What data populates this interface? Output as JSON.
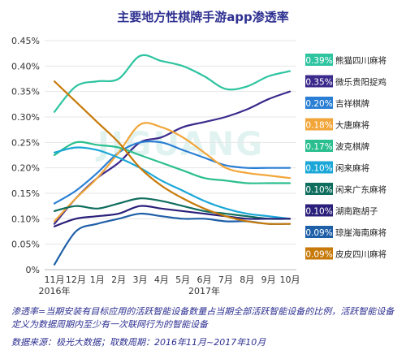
{
  "title": "主要地方性棋牌手游app渗透率",
  "watermark": "JIGUANG",
  "footnote": "渗透率=当期安装有目标应用的活跃智能设备数量占当期全部活跃智能设备的比例，活跃智能设备定义为数据周期内至少有一次联网行为的智能设备",
  "source": "数据来源：极光大数据；取数周期：2016年11月~2017年10月",
  "chart_data": {
    "type": "line",
    "title": "主要地方性棋牌手游app渗透率",
    "x_ticks": [
      "11月",
      "12月",
      "1月",
      "2月",
      "3月",
      "4月",
      "5月",
      "6月",
      "7月",
      "8月",
      "9月",
      "10月"
    ],
    "year_labels": [
      {
        "label": "2016年",
        "at": "11月"
      },
      {
        "label": "2017年",
        "at": "6月"
      }
    ],
    "y_ticks": [
      "0%",
      "0.05%",
      "0.10%",
      "0.15%",
      "0.20%",
      "0.25%",
      "0.30%",
      "0.35%",
      "0.40%",
      "0.45%"
    ],
    "ylim": [
      0,
      0.45
    ],
    "grid": "horizontal",
    "legend_placement": "right",
    "series": [
      {
        "name": "熊猫四川麻将",
        "end_label": "0.39%",
        "color": "#2ec4a0",
        "values": [
          0.31,
          0.36,
          0.37,
          0.375,
          0.42,
          0.41,
          0.4,
          0.38,
          0.355,
          0.36,
          0.38,
          0.39
        ]
      },
      {
        "name": "微乐贵阳捉鸡",
        "end_label": "0.35%",
        "color": "#3b2a8c",
        "values": [
          0.09,
          0.14,
          0.18,
          0.21,
          0.25,
          0.26,
          0.28,
          0.29,
          0.3,
          0.315,
          0.335,
          0.35
        ]
      },
      {
        "name": "吉祥棋牌",
        "end_label": "0.20%",
        "color": "#2a7fd4",
        "values": [
          0.13,
          0.155,
          0.19,
          0.23,
          0.25,
          0.25,
          0.235,
          0.22,
          0.205,
          0.2,
          0.2,
          0.2
        ]
      },
      {
        "name": "大唐麻将",
        "end_label": "0.18%",
        "color": "#f2a63a",
        "values": [
          0.095,
          0.14,
          0.18,
          0.23,
          0.285,
          0.28,
          0.26,
          0.23,
          0.2,
          0.19,
          0.185,
          0.18
        ]
      },
      {
        "name": "波克棋牌",
        "end_label": "0.17%",
        "color": "#2bbf8f",
        "values": [
          0.225,
          0.25,
          0.245,
          0.24,
          0.225,
          0.21,
          0.195,
          0.18,
          0.175,
          0.17,
          0.17,
          0.17
        ]
      },
      {
        "name": "闲来麻将",
        "end_label": "0.10%",
        "color": "#1aa7d8",
        "values": [
          0.23,
          0.24,
          0.235,
          0.22,
          0.2,
          0.175,
          0.155,
          0.135,
          0.12,
          0.11,
          0.105,
          0.1
        ]
      },
      {
        "name": "闲来广东麻将",
        "end_label": "0.10%",
        "color": "#0f6e5e",
        "values": [
          0.115,
          0.125,
          0.12,
          0.13,
          0.14,
          0.135,
          0.125,
          0.115,
          0.11,
          0.105,
          0.1,
          0.1
        ]
      },
      {
        "name": "湖南跑胡子",
        "end_label": "0.10%",
        "color": "#2a1f7a",
        "values": [
          0.085,
          0.1,
          0.105,
          0.11,
          0.125,
          0.12,
          0.115,
          0.11,
          0.105,
          0.1,
          0.1,
          0.1
        ]
      },
      {
        "name": "琼崖海南麻将",
        "end_label": "0.09%",
        "color": "#1f5fa8",
        "values": [
          0.01,
          0.075,
          0.09,
          0.1,
          0.11,
          0.105,
          0.1,
          0.1,
          0.095,
          0.095,
          0.09,
          0.09
        ]
      },
      {
        "name": "皮皮四川麻将",
        "end_label": "0.09%",
        "color": "#c77a0a",
        "values": [
          0.37,
          0.33,
          0.29,
          0.25,
          0.2,
          0.165,
          0.14,
          0.12,
          0.105,
          0.095,
          0.09,
          0.09
        ]
      }
    ]
  }
}
